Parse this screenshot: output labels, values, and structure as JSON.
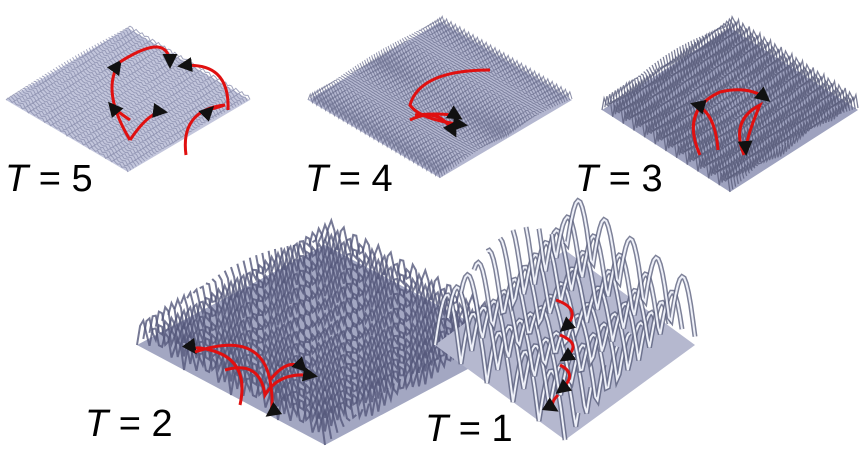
{
  "panels": [
    {
      "label": "T = 5"
    },
    {
      "label": "T = 4"
    },
    {
      "label": "T = 3"
    },
    {
      "label": "T = 2"
    },
    {
      "label": "T = 1"
    }
  ]
}
